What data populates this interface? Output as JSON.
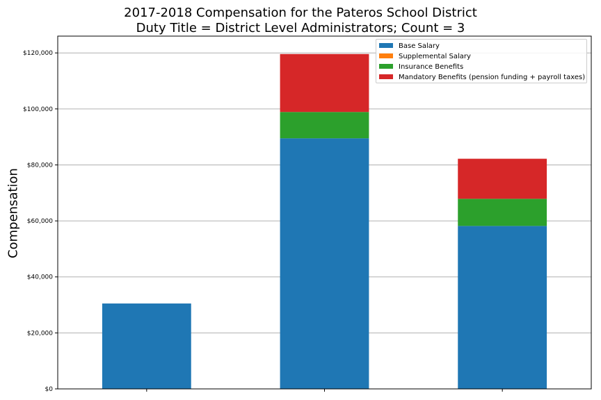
{
  "chart_data": {
    "type": "bar",
    "stacked": true,
    "title": "2017-2018 Compensation for the Pateros School District",
    "subtitle": "Duty Title = District Level Administrators; Count = 3",
    "xlabel": "",
    "ylabel": "Compensation",
    "categories": [
      "",
      "",
      ""
    ],
    "ylim": [
      0,
      126000
    ],
    "yticks": [
      0,
      20000,
      40000,
      60000,
      80000,
      100000,
      120000
    ],
    "ytick_labels": [
      "$0",
      "$20,000",
      "$40,000",
      "$60,000",
      "$80,000",
      "$100,000",
      "$120,000"
    ],
    "grid": true,
    "legend_position": "top-right",
    "series": [
      {
        "name": "Base Salary",
        "color": "#1f77b4",
        "values": [
          30500,
          89500,
          58200
        ]
      },
      {
        "name": "Supplemental Salary",
        "color": "#ff7f0e",
        "values": [
          0,
          0,
          0
        ]
      },
      {
        "name": "Insurance Benefits",
        "color": "#2ca02c",
        "values": [
          0,
          9400,
          9700
        ]
      },
      {
        "name": "Mandatory Benefits (pension funding + payroll taxes)",
        "color": "#d62728",
        "values": [
          0,
          20700,
          14300
        ]
      }
    ]
  }
}
